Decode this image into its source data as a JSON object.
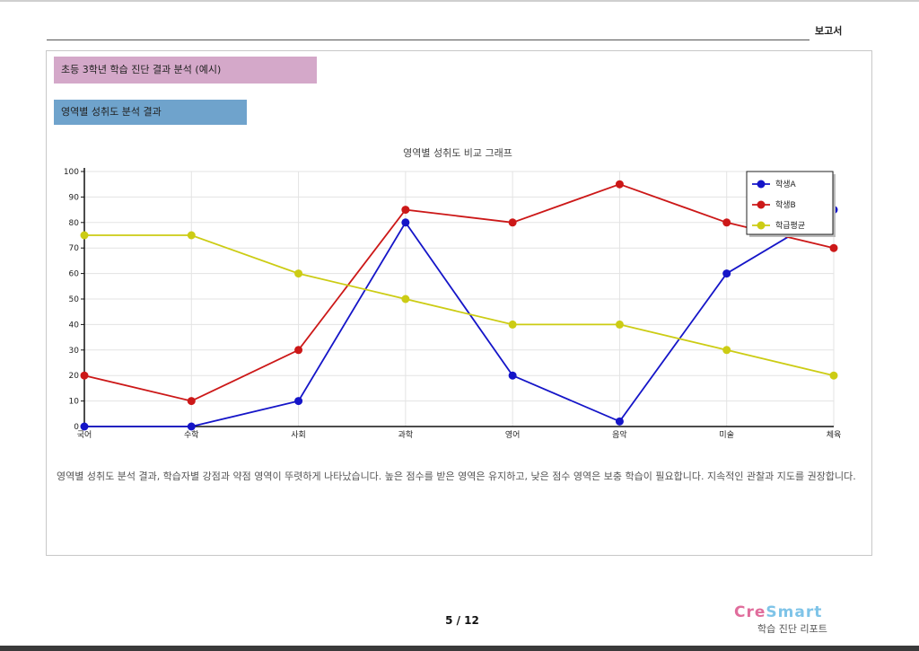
{
  "header": {
    "label": "보고서"
  },
  "tags": {
    "section": "초등 3학년 학습 진단 결과 분석 (예시)",
    "subsection": "영역별 성취도 분석 결과"
  },
  "footer": {
    "note": "영역별 성취도 분석 결과, 학습자별 강점과 약점 영역이 뚜렷하게 나타났습니다. 높은 점수를 받은 영역은 유지하고, 낮은 점수 영역은 보충 학습이 필요합니다. 지속적인 관찰과 지도를 권장합니다.",
    "page": "5 / 12"
  },
  "logo": {
    "part_a": "Cre",
    "part_b": "Smart",
    "sub": "학습 진단 리포트"
  },
  "colors": {
    "series_blue": "#1515c8",
    "series_red": "#cc1818",
    "series_yellow": "#cccc14",
    "grid": "#e3e3e3",
    "axis": "#111111"
  },
  "chart_data": {
    "type": "line",
    "title": "영역별 성취도 비교 그래프",
    "xlabel": "",
    "ylabel": "",
    "ylim": [
      0,
      100
    ],
    "yticks": [
      0,
      10,
      20,
      30,
      40,
      50,
      60,
      70,
      80,
      90,
      100
    ],
    "grid": true,
    "legend_position": "top-right",
    "categories": [
      "국어",
      "수학",
      "사회",
      "과학",
      "영어",
      "음악",
      "미술",
      "체육"
    ],
    "series": [
      {
        "name": "학생A",
        "color": "#1515c8",
        "values": [
          0,
          0,
          10,
          80,
          20,
          2,
          60,
          85
        ]
      },
      {
        "name": "학생B",
        "color": "#cc1818",
        "values": [
          20,
          10,
          30,
          85,
          80,
          95,
          80,
          70
        ]
      },
      {
        "name": "학급평균",
        "color": "#cccc14",
        "values": [
          75,
          75,
          60,
          50,
          40,
          40,
          30,
          20
        ]
      }
    ]
  }
}
